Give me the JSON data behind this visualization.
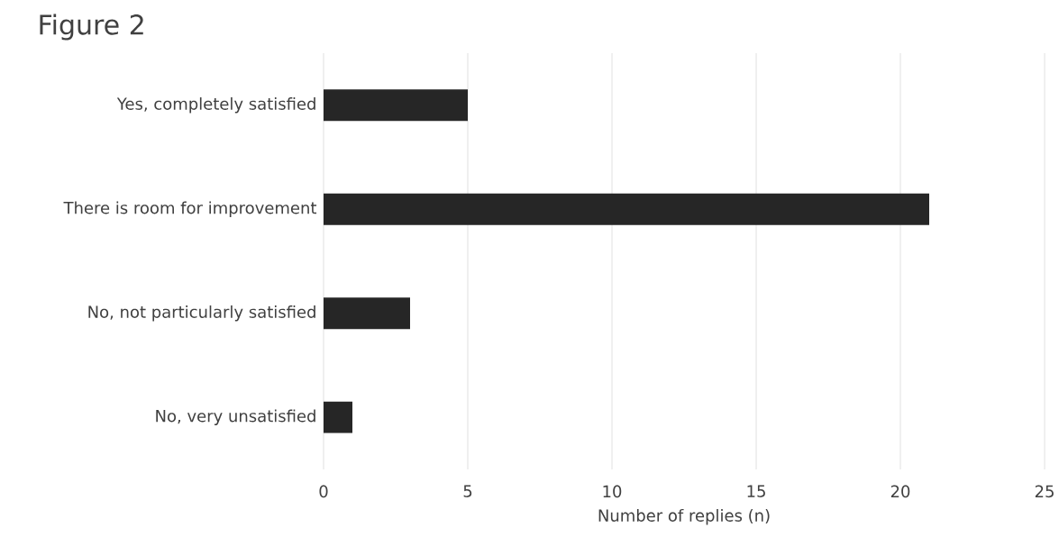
{
  "chart_data": {
    "type": "bar",
    "orientation": "horizontal",
    "title": "Figure 2",
    "xlabel": "Number of replies (n)",
    "categories": [
      "Yes, completely satisfied",
      "There is room for improvement",
      "No, not particularly satisfied",
      "No, very unsatisfied"
    ],
    "values": [
      5,
      21,
      3,
      1
    ],
    "color": "#262626",
    "xlim": [
      0,
      25
    ],
    "xticks": [
      0,
      5,
      10,
      15,
      20,
      25
    ],
    "grid": "x"
  }
}
